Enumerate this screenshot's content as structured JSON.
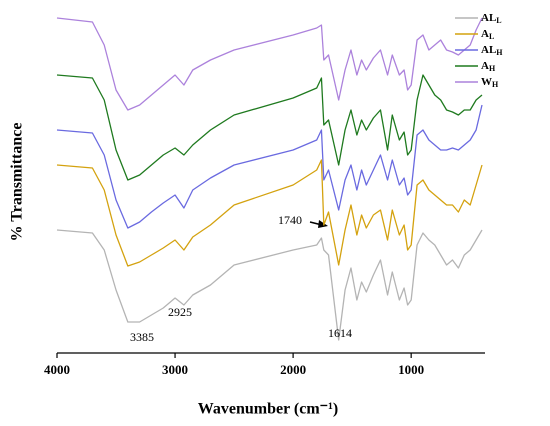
{
  "chart_data": {
    "type": "line",
    "x_label": "Wavenumber (cm⁻¹)",
    "y_label": "% Transmittance",
    "xlim": [
      4000,
      400
    ],
    "xticks": [
      4000,
      3000,
      2000,
      1000
    ],
    "ylim": [
      0,
      343
    ],
    "legend": "top-right",
    "annotations": [
      "3385",
      "2925",
      "1614",
      "1740"
    ],
    "x": [
      4000,
      3700,
      3600,
      3500,
      3400,
      3300,
      3200,
      3100,
      3000,
      2925,
      2850,
      2700,
      2500,
      2000,
      1800,
      1760,
      1740,
      1700,
      1614,
      1560,
      1510,
      1460,
      1420,
      1380,
      1320,
      1260,
      1200,
      1160,
      1100,
      1060,
      1030,
      1000,
      950,
      900,
      850,
      800,
      750,
      700,
      650,
      600,
      550,
      500,
      450,
      400
    ],
    "series": [
      {
        "name": "AL",
        "sub": "L",
        "color": "#b4b4b4",
        "values": [
          123,
          120,
          103,
          63,
          31,
          31,
          38,
          45,
          55,
          48,
          58,
          68,
          88,
          103,
          108,
          115,
          103,
          98,
          13,
          63,
          85,
          53,
          71,
          61,
          78,
          93,
          58,
          81,
          53,
          65,
          48,
          53,
          108,
          120,
          113,
          108,
          98,
          88,
          93,
          85,
          98,
          103,
          113,
          123
        ]
      },
      {
        "name": "A",
        "sub": "L",
        "color": "#d4a20f",
        "values": [
          188,
          185,
          163,
          118,
          87,
          91,
          98,
          105,
          113,
          103,
          116,
          128,
          148,
          168,
          183,
          193,
          128,
          141,
          88,
          123,
          148,
          118,
          138,
          125,
          138,
          143,
          113,
          143,
          118,
          128,
          103,
          108,
          168,
          173,
          163,
          158,
          153,
          148,
          148,
          141,
          153,
          148,
          168,
          188
        ]
      },
      {
        "name": "AL",
        "sub": "H",
        "color": "#6a6ae0",
        "values": [
          223,
          220,
          198,
          153,
          125,
          131,
          141,
          150,
          158,
          145,
          163,
          175,
          188,
          203,
          213,
          223,
          173,
          183,
          143,
          173,
          188,
          163,
          183,
          168,
          183,
          198,
          173,
          193,
          168,
          175,
          158,
          163,
          218,
          223,
          213,
          208,
          203,
          203,
          205,
          203,
          208,
          213,
          223,
          248
        ]
      },
      {
        "name": "A",
        "sub": "H",
        "color": "#1f7a1f",
        "values": [
          278,
          275,
          253,
          203,
          173,
          178,
          188,
          198,
          205,
          198,
          208,
          223,
          238,
          255,
          265,
          275,
          228,
          233,
          188,
          223,
          243,
          218,
          233,
          223,
          235,
          243,
          203,
          238,
          213,
          221,
          198,
          203,
          253,
          278,
          268,
          258,
          253,
          243,
          241,
          238,
          243,
          243,
          253,
          258
        ]
      },
      {
        "name": "W",
        "sub": "H",
        "color": "#ac82dc",
        "values": [
          335,
          331,
          308,
          263,
          243,
          248,
          258,
          268,
          278,
          268,
          283,
          293,
          303,
          318,
          325,
          328,
          293,
          298,
          253,
          283,
          303,
          278,
          293,
          283,
          295,
          303,
          278,
          298,
          278,
          283,
          263,
          268,
          313,
          318,
          303,
          308,
          313,
          303,
          301,
          298,
          303,
          308,
          323,
          335
        ]
      }
    ]
  }
}
